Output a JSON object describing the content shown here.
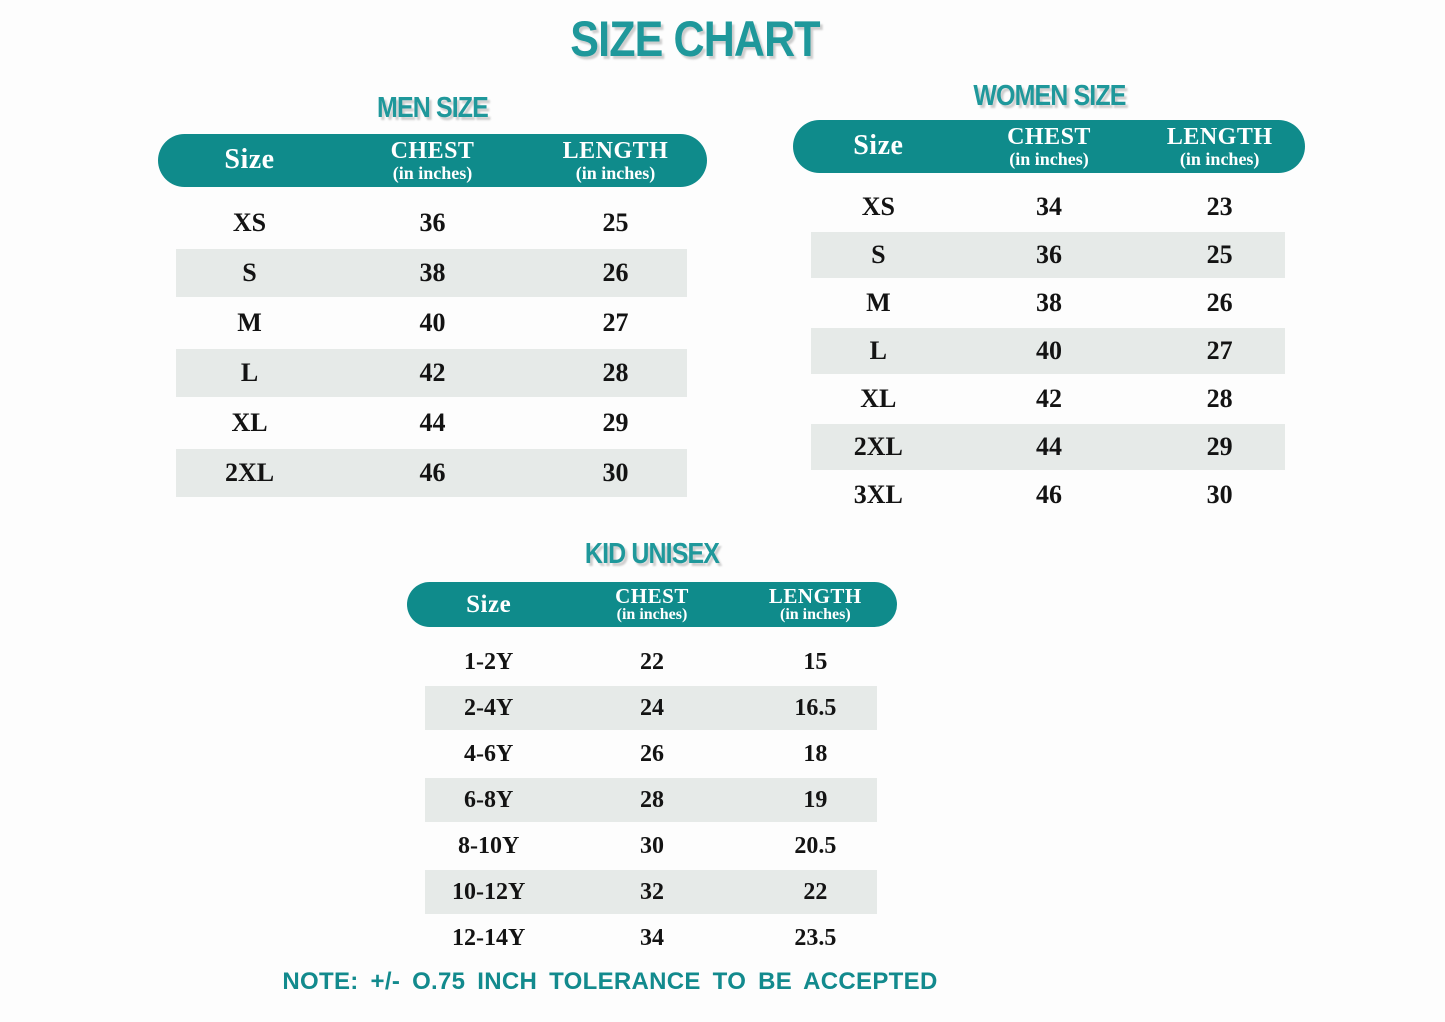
{
  "page": {
    "title": "SIZE CHART",
    "note": "NOTE: +/- O.75 INCH TOLERANCE TO BE ACCEPTED"
  },
  "colors": {
    "pill_teal": "#0f8b8b",
    "heading_teal": "#1f989b",
    "note_teal": "#128a8d",
    "alt_row_gray": "#e6eae8",
    "background": "#fdfdfd",
    "data_text": "#131313",
    "header_text": "#ffffff"
  },
  "chart_data": [
    {
      "type": "table",
      "title": "MEN SIZE",
      "col_size": "Size",
      "col_chest": "CHEST",
      "col_length": "LENGTH",
      "col_unit": "(in inches)",
      "rows": [
        {
          "size": "XS",
          "chest": "36",
          "length": "25"
        },
        {
          "size": "S",
          "chest": "38",
          "length": "26"
        },
        {
          "size": "M",
          "chest": "40",
          "length": "27"
        },
        {
          "size": "L",
          "chest": "42",
          "length": "28"
        },
        {
          "size": "XL",
          "chest": "44",
          "length": "29"
        },
        {
          "size": "2XL",
          "chest": "46",
          "length": "30"
        }
      ]
    },
    {
      "type": "table",
      "title": "WOMEN SIZE",
      "col_size": "Size",
      "col_chest": "CHEST",
      "col_length": "LENGTH",
      "col_unit": "(in inches)",
      "rows": [
        {
          "size": "XS",
          "chest": "34",
          "length": "23"
        },
        {
          "size": "S",
          "chest": "36",
          "length": "25"
        },
        {
          "size": "M",
          "chest": "38",
          "length": "26"
        },
        {
          "size": "L",
          "chest": "40",
          "length": "27"
        },
        {
          "size": "XL",
          "chest": "42",
          "length": "28"
        },
        {
          "size": "2XL",
          "chest": "44",
          "length": "29"
        },
        {
          "size": "3XL",
          "chest": "46",
          "length": "30"
        }
      ]
    },
    {
      "type": "table",
      "title": "KID UNISEX",
      "col_size": "Size",
      "col_chest": "CHEST",
      "col_length": "LENGTH",
      "col_unit": "(in inches)",
      "rows": [
        {
          "size": "1-2Y",
          "chest": "22",
          "length": "15"
        },
        {
          "size": "2-4Y",
          "chest": "24",
          "length": "16.5"
        },
        {
          "size": "4-6Y",
          "chest": "26",
          "length": "18"
        },
        {
          "size": "6-8Y",
          "chest": "28",
          "length": "19"
        },
        {
          "size": "8-10Y",
          "chest": "30",
          "length": "20.5"
        },
        {
          "size": "10-12Y",
          "chest": "32",
          "length": "22"
        },
        {
          "size": "12-14Y",
          "chest": "34",
          "length": "23.5"
        }
      ]
    }
  ]
}
